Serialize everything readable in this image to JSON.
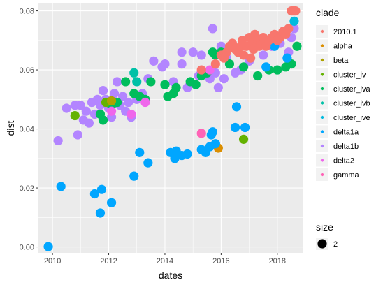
{
  "chart_data": {
    "type": "scatter",
    "xlabel": "dates",
    "ylabel": "dist",
    "xlim": [
      2009.5,
      2018.9
    ],
    "ylim": [
      -0.002,
      0.0825
    ],
    "x_ticks": [
      2010,
      2012,
      2014,
      2016,
      2018
    ],
    "x_tick_labels": [
      "2010",
      "2012",
      "2014",
      "2016",
      "2018"
    ],
    "y_ticks": [
      0.0,
      0.02,
      0.04,
      0.06,
      0.08
    ],
    "y_tick_labels": [
      "0.00",
      "0.02",
      "0.04",
      "0.06",
      "0.08"
    ],
    "grid": true,
    "legend_position": "right",
    "legend": {
      "title": "clade",
      "items": [
        "2010.1",
        "alpha",
        "beta",
        "cluster_iv",
        "cluster_iva",
        "cluster_ivb",
        "cluster_ive",
        "delta1a",
        "delta1b",
        "delta2",
        "gamma"
      ],
      "size_title": "size",
      "size_label": "2"
    },
    "colors": {
      "2010.1": "#F8766D",
      "alpha": "#DB8E00",
      "beta": "#AEA200",
      "cluster_iv": "#64B200",
      "cluster_iva": "#00BD5C",
      "cluster_ivb": "#00C1A7",
      "cluster_ive": "#00BADE",
      "delta1a": "#00A6FF",
      "delta1b": "#B385FF",
      "delta2": "#EF67EB",
      "gamma": "#FF63B6"
    },
    "series": [
      {
        "name": "delta1b",
        "points": [
          [
            2010.2,
            0.036
          ],
          [
            2010.5,
            0.047
          ],
          [
            2010.8,
            0.048
          ],
          [
            2010.9,
            0.038
          ],
          [
            2011.0,
            0.048
          ],
          [
            2011.1,
            0.043
          ],
          [
            2011.2,
            0.046
          ],
          [
            2011.3,
            0.042
          ],
          [
            2011.4,
            0.049
          ],
          [
            2011.5,
            0.045
          ],
          [
            2011.6,
            0.05
          ],
          [
            2011.7,
            0.048
          ],
          [
            2011.8,
            0.053
          ],
          [
            2011.9,
            0.05
          ],
          [
            2012.0,
            0.047
          ],
          [
            2012.1,
            0.044
          ],
          [
            2012.2,
            0.052
          ],
          [
            2012.3,
            0.056
          ],
          [
            2012.4,
            0.048
          ],
          [
            2012.5,
            0.051
          ],
          [
            2012.6,
            0.046
          ],
          [
            2012.7,
            0.049
          ],
          [
            2012.8,
            0.044
          ],
          [
            2013.0,
            0.05
          ],
          [
            2013.2,
            0.052
          ],
          [
            2013.4,
            0.057
          ],
          [
            2013.6,
            0.063
          ],
          [
            2013.9,
            0.061
          ],
          [
            2014.0,
            0.062
          ],
          [
            2014.3,
            0.056
          ],
          [
            2014.6,
            0.062
          ],
          [
            2014.6,
            0.066
          ],
          [
            2014.8,
            0.054
          ],
          [
            2015.0,
            0.066
          ],
          [
            2015.2,
            0.058
          ],
          [
            2015.3,
            0.065
          ],
          [
            2015.6,
            0.057
          ],
          [
            2015.7,
            0.074
          ],
          [
            2015.8,
            0.059
          ],
          [
            2015.9,
            0.054
          ],
          [
            2016.0,
            0.068
          ],
          [
            2016.1,
            0.057
          ],
          [
            2016.2,
            0.064
          ],
          [
            2016.5,
            0.059
          ],
          [
            2016.7,
            0.06
          ],
          [
            2017.0,
            0.063
          ],
          [
            2017.5,
            0.065
          ],
          [
            2017.8,
            0.068
          ],
          [
            2018.1,
            0.069
          ],
          [
            2018.4,
            0.066
          ],
          [
            2018.5,
            0.071
          ],
          [
            2018.6,
            0.074
          ]
        ]
      },
      {
        "name": "cluster_iva",
        "points": [
          [
            2011.7,
            0.045
          ],
          [
            2011.8,
            0.043
          ],
          [
            2012.1,
            0.048
          ],
          [
            2012.3,
            0.049
          ],
          [
            2012.6,
            0.056
          ],
          [
            2012.9,
            0.052
          ],
          [
            2013.1,
            0.051
          ],
          [
            2013.3,
            0.05
          ],
          [
            2013.5,
            0.056
          ],
          [
            2014.0,
            0.055
          ],
          [
            2014.1,
            0.051
          ],
          [
            2014.3,
            0.052
          ],
          [
            2014.4,
            0.054
          ],
          [
            2014.9,
            0.056
          ],
          [
            2015.1,
            0.055
          ],
          [
            2015.3,
            0.058
          ],
          [
            2015.5,
            0.059
          ],
          [
            2015.7,
            0.066
          ],
          [
            2015.8,
            0.065
          ],
          [
            2016.0,
            0.066
          ],
          [
            2016.3,
            0.062
          ],
          [
            2016.8,
            0.061
          ],
          [
            2017.3,
            0.058
          ],
          [
            2017.7,
            0.06
          ],
          [
            2018.0,
            0.06
          ],
          [
            2018.3,
            0.061
          ],
          [
            2018.5,
            0.062
          ],
          [
            2018.7,
            0.068
          ]
        ]
      },
      {
        "name": "cluster_iv",
        "points": [
          [
            2010.8,
            0.0445
          ],
          [
            2011.9,
            0.049
          ],
          [
            2016.8,
            0.0365
          ]
        ]
      },
      {
        "name": "cluster_ivb",
        "points": [
          [
            2012.9,
            0.059
          ],
          [
            2013.0,
            0.056
          ]
        ]
      },
      {
        "name": "beta",
        "points": [
          [
            2012.1,
            0.0495
          ]
        ]
      },
      {
        "name": "alpha",
        "points": [
          [
            2015.9,
            0.0335
          ]
        ]
      },
      {
        "name": "delta2",
        "points": [
          [
            2012.1,
            0.046
          ],
          [
            2012.8,
            0.045
          ],
          [
            2013.3,
            0.049
          ],
          [
            2015.6,
            0.06
          ]
        ]
      },
      {
        "name": "gamma",
        "points": [
          [
            2015.3,
            0.0385
          ]
        ]
      },
      {
        "name": "cluster_ive",
        "points": [
          [
            2018.6,
            0.0765
          ]
        ]
      },
      {
        "name": "delta1a",
        "points": [
          [
            2009.85,
            0.0001
          ],
          [
            2010.3,
            0.0205
          ],
          [
            2011.5,
            0.018
          ],
          [
            2011.7,
            0.0115
          ],
          [
            2011.75,
            0.0195
          ],
          [
            2012.1,
            0.015
          ],
          [
            2012.9,
            0.024
          ],
          [
            2013.1,
            0.032
          ],
          [
            2013.4,
            0.0285
          ],
          [
            2014.2,
            0.032
          ],
          [
            2014.35,
            0.03
          ],
          [
            2014.4,
            0.0325
          ],
          [
            2014.6,
            0.031
          ],
          [
            2014.8,
            0.0315
          ],
          [
            2015.3,
            0.033
          ],
          [
            2015.45,
            0.032
          ],
          [
            2015.6,
            0.034
          ],
          [
            2015.65,
            0.038
          ],
          [
            2015.7,
            0.039
          ],
          [
            2015.8,
            0.035
          ],
          [
            2016.5,
            0.0405
          ],
          [
            2016.55,
            0.0475
          ],
          [
            2016.85,
            0.0405
          ],
          [
            2017.6,
            0.061
          ],
          [
            2017.9,
            0.068
          ],
          [
            2018.35,
            0.064
          ]
        ]
      },
      {
        "name": "2010.1",
        "points": [
          [
            2015.3,
            0.06
          ],
          [
            2015.8,
            0.062
          ],
          [
            2016.0,
            0.065
          ],
          [
            2016.1,
            0.064
          ],
          [
            2016.2,
            0.066
          ],
          [
            2016.3,
            0.068
          ],
          [
            2016.4,
            0.069
          ],
          [
            2016.5,
            0.067
          ],
          [
            2016.6,
            0.066
          ],
          [
            2016.7,
            0.068
          ],
          [
            2016.75,
            0.07
          ],
          [
            2016.8,
            0.065
          ],
          [
            2016.9,
            0.068
          ],
          [
            2017.0,
            0.071
          ],
          [
            2017.05,
            0.064
          ],
          [
            2017.1,
            0.069
          ],
          [
            2017.15,
            0.067
          ],
          [
            2017.2,
            0.072
          ],
          [
            2017.3,
            0.07
          ],
          [
            2017.35,
            0.068
          ],
          [
            2017.4,
            0.069
          ],
          [
            2017.5,
            0.071
          ],
          [
            2017.6,
            0.068
          ],
          [
            2017.7,
            0.07
          ],
          [
            2017.8,
            0.071
          ],
          [
            2017.9,
            0.072
          ],
          [
            2018.0,
            0.07
          ],
          [
            2018.1,
            0.071
          ],
          [
            2018.2,
            0.073
          ],
          [
            2018.3,
            0.072
          ],
          [
            2018.4,
            0.074
          ],
          [
            2018.5,
            0.08
          ],
          [
            2018.55,
            0.08
          ],
          [
            2018.6,
            0.08
          ],
          [
            2018.65,
            0.08
          ]
        ]
      }
    ]
  }
}
